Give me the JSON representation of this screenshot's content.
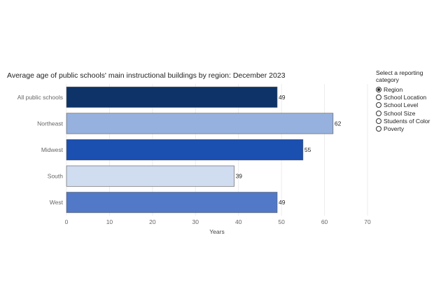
{
  "chart_data": {
    "type": "bar",
    "orientation": "horizontal",
    "title": "Average age of public schools' main instructional buildings by region: December 2023",
    "categories": [
      "All public schools",
      "Northeast",
      "Midwest",
      "South",
      "West"
    ],
    "values": [
      49,
      62,
      55,
      39,
      49
    ],
    "data_labels": [
      "49",
      "62",
      "55",
      "39",
      "49"
    ],
    "colors": [
      "#0d3368",
      "#96b1dd",
      "#1b4fb0",
      "#d0dcf0",
      "#5179c8"
    ],
    "xlabel": "Years",
    "xlim": [
      0,
      70
    ],
    "xticks": [
      0,
      10,
      20,
      30,
      40,
      50,
      60,
      70
    ],
    "grid": true
  },
  "filter": {
    "title": "Select a reporting category",
    "options": [
      {
        "label": "Region",
        "selected": true
      },
      {
        "label": "School Location",
        "selected": false
      },
      {
        "label": "School Level",
        "selected": false
      },
      {
        "label": "School Size",
        "selected": false
      },
      {
        "label": "Students of Color",
        "selected": false
      },
      {
        "label": "Poverty",
        "selected": false
      }
    ]
  }
}
